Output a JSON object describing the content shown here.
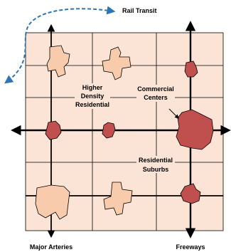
{
  "labels": {
    "rail_transit": "Rail Transit",
    "higher_density_line1": "Higher",
    "higher_density_line2": "Density",
    "higher_density_line3": "Residential",
    "commercial_line1": "Commercial",
    "commercial_line2": "Centers",
    "residential_line1": "Residential",
    "residential_line2": "Suburbs",
    "major_arteries": "Major Arteries",
    "freeways": "Freeways"
  },
  "colors": {
    "block_fill": "#fbe4d5",
    "residential_fill": "#f8cbad",
    "commercial_fill": "#c0504d",
    "rail_line": "#2e75b6",
    "lines": "#000000"
  }
}
